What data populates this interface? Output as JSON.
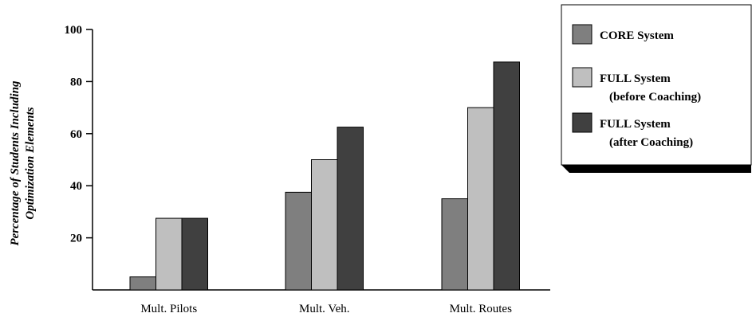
{
  "chart_data": {
    "type": "bar",
    "title": "",
    "xlabel": "",
    "ylabel_lines": [
      "Percentage of Students Including",
      "Optimization Elements"
    ],
    "categories": [
      "Mult. Pilots",
      "Mult. Veh.",
      "Mult. Routes"
    ],
    "series": [
      {
        "name_lines": [
          "CORE System"
        ],
        "color": "#7f7f7f",
        "values": [
          5,
          37.5,
          35
        ]
      },
      {
        "name_lines": [
          "FULL System",
          "(before Coaching)"
        ],
        "color": "#bfbfbf",
        "values": [
          27.5,
          50,
          70
        ]
      },
      {
        "name_lines": [
          "FULL System",
          "(after Coaching)"
        ],
        "color": "#404040",
        "values": [
          27.5,
          62.5,
          87.5
        ]
      }
    ],
    "ylim": [
      0,
      100
    ],
    "yticks": [
      20,
      40,
      60,
      80,
      100
    ],
    "grid": false,
    "legend_position": "top-right"
  }
}
